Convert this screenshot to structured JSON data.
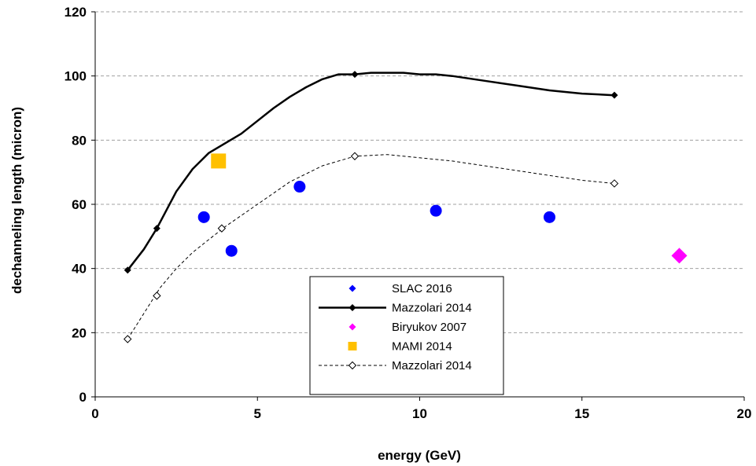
{
  "chart_data": {
    "type": "scatter",
    "xlabel": "energy (GeV)",
    "ylabel": "dechanneling length (micron)",
    "xlim": [
      0,
      20
    ],
    "ylim": [
      0,
      120
    ],
    "xticks": [
      0,
      5,
      10,
      15,
      20
    ],
    "yticks": [
      0,
      20,
      40,
      60,
      80,
      100,
      120
    ],
    "grid": "horizontal dashed",
    "legend_position": "bottom-center",
    "series": [
      {
        "name": "SLAC 2016",
        "kind": "markers",
        "marker": "circle",
        "color": "#0000ff",
        "x": [
          3.35,
          4.2,
          6.3,
          10.5,
          14.0
        ],
        "y": [
          56,
          45.5,
          65.5,
          58,
          56
        ]
      },
      {
        "name": "Mazzolari 2014",
        "kind": "line-solid",
        "marker": "diamond-filled",
        "color": "#000000",
        "x": [
          1.0,
          1.9,
          8.0,
          16.0
        ],
        "y": [
          39.5,
          52.5,
          100.5,
          94
        ],
        "curve_x": [
          1.0,
          1.5,
          1.9,
          2.5,
          3.0,
          3.5,
          4.0,
          4.5,
          5.0,
          5.5,
          6.0,
          6.5,
          7.0,
          7.5,
          8.0,
          8.5,
          9.0,
          9.5,
          10.0,
          10.5,
          11.0,
          12.0,
          13.0,
          14.0,
          15.0,
          16.0
        ],
        "curve_y": [
          39.5,
          46,
          52.5,
          64,
          71,
          76,
          79,
          82,
          86,
          90,
          93.5,
          96.5,
          99,
          100.5,
          100.5,
          101,
          101,
          101,
          100.5,
          100.5,
          100,
          98.5,
          97,
          95.5,
          94.5,
          94
        ]
      },
      {
        "name": "Biryukov 2007",
        "kind": "markers",
        "marker": "diamond",
        "color": "#ff00ff",
        "x": [
          18.0
        ],
        "y": [
          44
        ]
      },
      {
        "name": "MAMI 2014",
        "kind": "markers",
        "marker": "square",
        "color": "#ffc000",
        "x": [
          3.8
        ],
        "y": [
          73.5
        ]
      },
      {
        "name": "Mazzolari 2014",
        "kind": "line-dashed",
        "marker": "diamond-open",
        "color": "#000000",
        "x": [
          1.0,
          1.9,
          3.9,
          8.0,
          16.0
        ],
        "y": [
          18,
          31.5,
          52.5,
          75,
          66.5
        ],
        "curve_x": [
          1.0,
          1.5,
          2.0,
          2.5,
          3.0,
          3.5,
          4.0,
          5.0,
          6.0,
          7.0,
          8.0,
          9.0,
          10.0,
          11.0,
          12.0,
          13.0,
          14.0,
          15.0,
          16.0
        ],
        "curve_y": [
          18,
          26,
          34,
          40,
          45,
          49,
          53,
          60,
          67,
          72,
          75,
          75.5,
          74.5,
          73.5,
          72,
          70.5,
          69,
          67.5,
          66.5
        ]
      }
    ]
  }
}
